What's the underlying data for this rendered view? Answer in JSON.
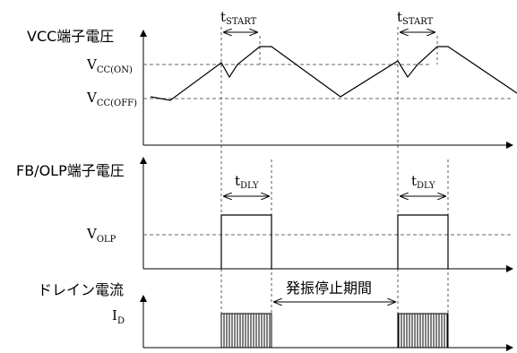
{
  "panels": {
    "vcc": {
      "title": "VCC端子電圧",
      "level_on": {
        "main": "V",
        "sub": "CC(ON)"
      },
      "level_off": {
        "main": "V",
        "sub": "CC(OFF)"
      },
      "interval": {
        "main": "t",
        "sub": "START"
      }
    },
    "fb": {
      "title": "FB/OLP端子電圧",
      "level": {
        "main": "V",
        "sub": "OLP"
      },
      "interval": {
        "main": "t",
        "sub": "DLY"
      }
    },
    "drain": {
      "title": "ドレイン電流",
      "level": {
        "main": "I",
        "sub": "D"
      },
      "stop_period": "発振停止期間"
    }
  },
  "colors": {
    "line": "#000000",
    "dashed": "#333333"
  }
}
